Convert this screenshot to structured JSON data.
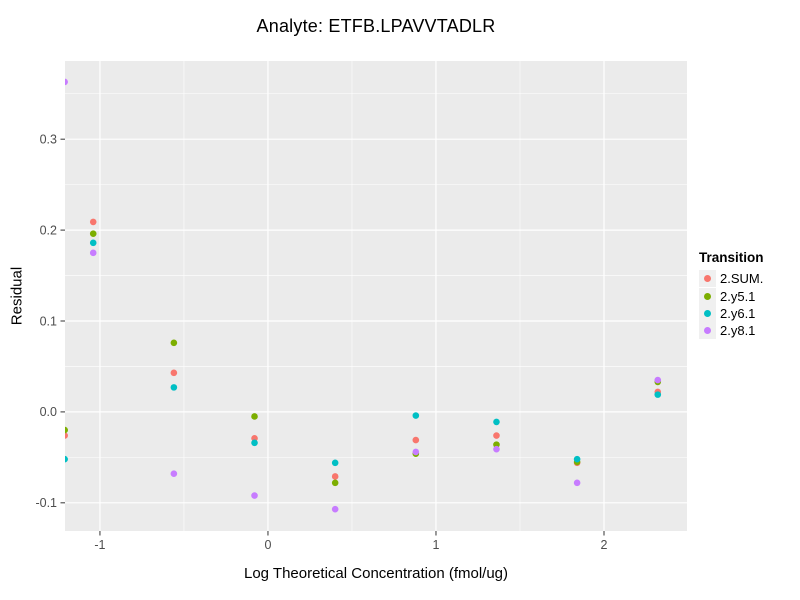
{
  "title": "Analyte: ETFB.LPAVVTADLR",
  "colors": {
    "panel_bg": "#EBEBEB",
    "grid": "#FFFFFF",
    "tick_mark": "#333333",
    "tick_label": "#4D4D4D",
    "legend_key_bg": "#F0F0F0"
  },
  "chart_data": {
    "type": "scatter",
    "title": "Analyte: ETFB.LPAVVTADLR",
    "xlabel": "Log Theoretical Concentration (fmol/ug)",
    "ylabel": "Residual",
    "xlim": [
      -1.208,
      2.494
    ],
    "ylim": [
      -0.131,
      0.386
    ],
    "x_major_ticks": [
      -1,
      0,
      1,
      2
    ],
    "x_tick_labels": [
      "-1",
      "0",
      "1",
      "2"
    ],
    "x_minor_ticks": [
      -0.5,
      0.5,
      1.5
    ],
    "y_major_ticks": [
      -0.1,
      0.0,
      0.1,
      0.2,
      0.3
    ],
    "y_tick_labels": [
      "-0.1",
      "0.0",
      "0.1",
      "0.2",
      "0.3"
    ],
    "y_minor_ticks": [
      -0.05,
      0.05,
      0.15,
      0.25,
      0.35
    ],
    "grid": true,
    "legend_position": "right",
    "legend_title": "Transition",
    "x": [
      -1.21,
      -1.04,
      -0.56,
      -0.08,
      0.4,
      0.88,
      1.36,
      1.84,
      2.32
    ],
    "series": [
      {
        "name": "2.SUM.",
        "color": "#F8766D",
        "values": [
          -0.026,
          0.209,
          0.043,
          -0.029,
          -0.071,
          -0.031,
          -0.026,
          -0.056,
          0.022
        ]
      },
      {
        "name": "2.y5.1",
        "color": "#7CAE00",
        "values": [
          -0.02,
          0.196,
          0.076,
          -0.005,
          -0.078,
          -0.046,
          -0.036,
          -0.055,
          0.033
        ]
      },
      {
        "name": "2.y6.1",
        "color": "#00BFC4",
        "values": [
          -0.052,
          0.186,
          0.027,
          -0.034,
          -0.056,
          -0.004,
          -0.011,
          -0.052,
          0.019
        ]
      },
      {
        "name": "2.y8.1",
        "color": "#C77CFF",
        "values": [
          0.363,
          0.175,
          -0.068,
          -0.092,
          -0.107,
          -0.044,
          -0.041,
          -0.078,
          0.035
        ]
      }
    ]
  }
}
